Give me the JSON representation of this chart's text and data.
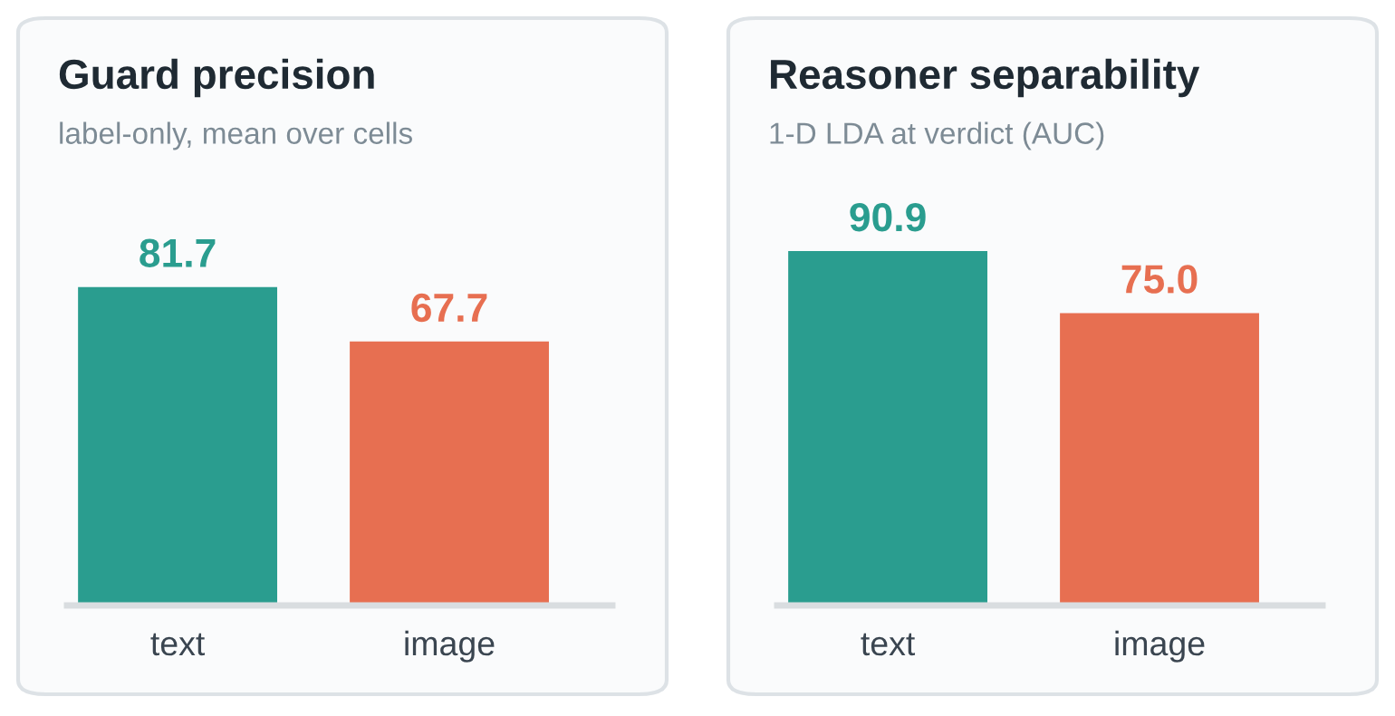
{
  "chart_data": [
    {
      "type": "bar",
      "title": "Guard precision",
      "subtitle": "label-only, mean over cells",
      "categories": [
        "text",
        "image"
      ],
      "values": [
        81.7,
        67.7
      ],
      "value_labels": [
        "81.7",
        "67.7"
      ],
      "colors": [
        "#2a9d8f",
        "#e76f51"
      ],
      "tick_labels": "x"
    },
    {
      "type": "bar",
      "title": "Reasoner separability",
      "subtitle": "1-D LDA at verdict (AUC)",
      "categories": [
        "text",
        "image"
      ],
      "values": [
        90.9,
        75.0
      ],
      "value_labels": [
        "90.9",
        "75.0"
      ],
      "colors": [
        "#2a9d8f",
        "#e76f51"
      ],
      "tick_labels": "x"
    }
  ]
}
